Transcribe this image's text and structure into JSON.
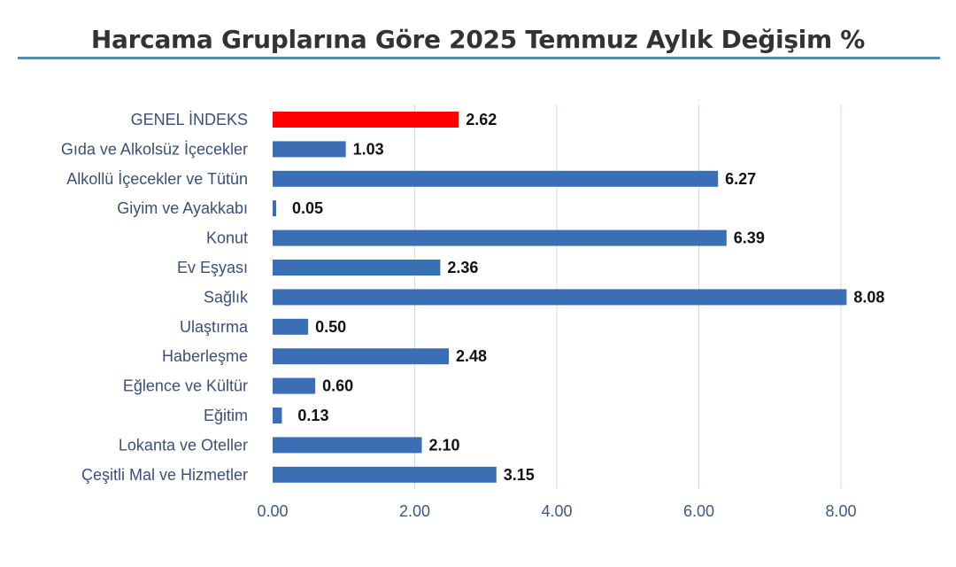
{
  "chart_data": {
    "type": "bar",
    "orientation": "horizontal",
    "title": "Harcama Gruplarına Göre 2025 Temmuz Aylık Değişim %",
    "categories": [
      "GENEL İNDEKS",
      "Gıda ve Alkolsüz İçecekler",
      "Alkollü İçecekler ve Tütün",
      "Giyim ve Ayakkabı",
      "Konut",
      "Ev Eşyası",
      "Sağlık",
      "Ulaştırma",
      "Haberleşme",
      "Eğlence ve Kültür",
      "Eğitim",
      "Lokanta ve Oteller",
      "Çeşitli Mal ve Hizmetler"
    ],
    "values": [
      2.62,
      1.03,
      6.27,
      0.05,
      6.39,
      2.36,
      8.08,
      0.5,
      2.48,
      0.6,
      0.13,
      2.1,
      3.15
    ],
    "value_labels": [
      "2.62",
      "1.03",
      "6.27",
      "0.05",
      "6.39",
      "2.36",
      "8.08",
      "0.50",
      "2.48",
      "0.60",
      "0.13",
      "2.10",
      "3.15"
    ],
    "highlight_index": 0,
    "xlim": [
      0,
      8
    ],
    "xticks": [
      0,
      2,
      4,
      6,
      8
    ],
    "xtick_labels": [
      "0.00",
      "2.00",
      "4.00",
      "6.00",
      "8.00"
    ],
    "xlabel": "",
    "ylabel": "",
    "grid": "vertical",
    "legend": "none",
    "colors": {
      "bar": "#3a6fb5",
      "highlight_bar": "#ff0000",
      "highlight_text": "#e01010",
      "category_text": "#3a4f7a",
      "value_text": "#111111",
      "gridline": "#c9dcef",
      "title_rule": "#4a90a8"
    }
  }
}
